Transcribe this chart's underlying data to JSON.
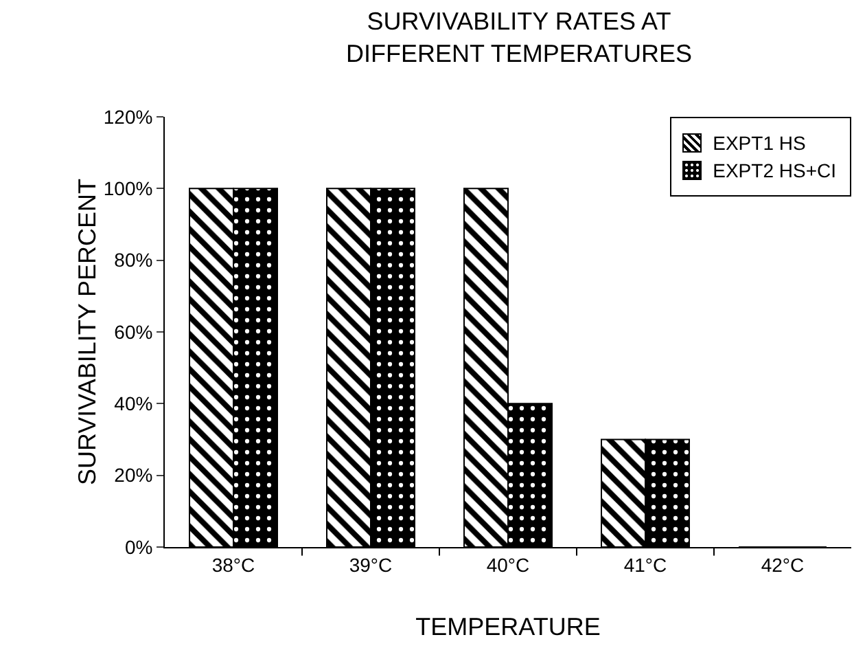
{
  "chart_data": {
    "type": "bar",
    "title": "SURVIVABILITY RATES AT DIFFERENT TEMPERATURES",
    "xlabel": "TEMPERATURE",
    "ylabel": "SURVIVABILITY PERCENT",
    "categories": [
      "38°C",
      "39°C",
      "40°C",
      "41°C",
      "42°C"
    ],
    "series": [
      {
        "name": "EXPT1 HS",
        "color": "#000000",
        "values": [
          100,
          100,
          100,
          30,
          0
        ]
      },
      {
        "name": "EXPT2 HS+CI",
        "color": "#000000",
        "values": [
          100,
          100,
          40,
          30,
          0
        ]
      }
    ],
    "ylim": [
      0,
      120
    ],
    "yticks": [
      {
        "value": 0,
        "label": "0%"
      },
      {
        "value": 20,
        "label": "20%"
      },
      {
        "value": 40,
        "label": "40%"
      },
      {
        "value": 60,
        "label": "60%"
      },
      {
        "value": 80,
        "label": "80%"
      },
      {
        "value": 100,
        "label": "100%"
      },
      {
        "value": 120,
        "label": "120%"
      }
    ],
    "grid": false,
    "legend": "top right"
  }
}
